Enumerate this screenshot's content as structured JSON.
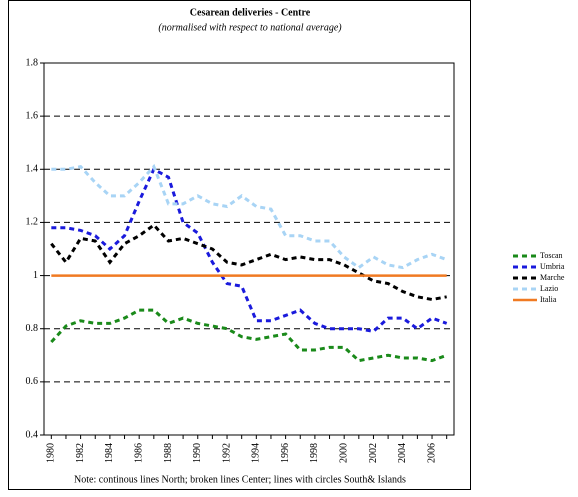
{
  "chart_data": {
    "type": "line",
    "title": "Cesarean deliveries - Centre",
    "subtitle": "(normalised with respect to national average)",
    "note": "Note: continous lines North; broken lines Center; lines with circles South& Islands",
    "categories": [
      "1980",
      null,
      "1982",
      null,
      "1984",
      null,
      "1986",
      null,
      "1988",
      null,
      "1990",
      null,
      "1992",
      null,
      "1994",
      null,
      "1996",
      null,
      "1998",
      null,
      "2000",
      null,
      "2002",
      null,
      "2004",
      null,
      "2006",
      null
    ],
    "ylim": [
      0.4,
      1.8
    ],
    "yticks": [
      0.4,
      0.6,
      0.8,
      1,
      1.2,
      1.4,
      1.6,
      1.8
    ],
    "grid": true,
    "legend": "right",
    "series": [
      {
        "name": "Toscan",
        "color": "#1a8a1a",
        "dashed": true,
        "values": [
          0.75,
          0.81,
          0.83,
          0.82,
          0.82,
          0.84,
          0.87,
          0.87,
          0.82,
          0.84,
          0.82,
          0.81,
          0.8,
          0.77,
          0.76,
          0.77,
          0.78,
          0.72,
          0.72,
          0.73,
          0.73,
          0.68,
          0.69,
          0.7,
          0.69,
          0.69,
          0.68,
          0.7
        ]
      },
      {
        "name": "Umbria",
        "color": "#1a1adc",
        "dashed": true,
        "values": [
          1.18,
          1.18,
          1.17,
          1.15,
          1.1,
          1.15,
          1.28,
          1.4,
          1.37,
          1.2,
          1.16,
          1.05,
          0.97,
          0.96,
          0.83,
          0.83,
          0.85,
          0.87,
          0.82,
          0.8,
          0.8,
          0.8,
          0.79,
          0.84,
          0.84,
          0.8,
          0.84,
          0.82
        ]
      },
      {
        "name": "Marche",
        "color": "#000000",
        "dashed": true,
        "values": [
          1.12,
          1.05,
          1.14,
          1.13,
          1.05,
          1.12,
          1.15,
          1.19,
          1.13,
          1.14,
          1.12,
          1.1,
          1.05,
          1.04,
          1.06,
          1.08,
          1.06,
          1.07,
          1.06,
          1.06,
          1.04,
          1.01,
          0.98,
          0.97,
          0.94,
          0.92,
          0.91,
          0.92
        ]
      },
      {
        "name": "Lazio",
        "color": "#a8d4f5",
        "dashed": true,
        "values": [
          1.4,
          1.4,
          1.41,
          1.35,
          1.3,
          1.3,
          1.35,
          1.41,
          1.27,
          1.27,
          1.3,
          1.27,
          1.26,
          1.3,
          1.26,
          1.25,
          1.15,
          1.15,
          1.13,
          1.13,
          1.07,
          1.03,
          1.07,
          1.04,
          1.03,
          1.06,
          1.08,
          1.06
        ]
      },
      {
        "name": "Italia",
        "color": "#f07a22",
        "dashed": false,
        "values": [
          1,
          1,
          1,
          1,
          1,
          1,
          1,
          1,
          1,
          1,
          1,
          1,
          1,
          1,
          1,
          1,
          1,
          1,
          1,
          1,
          1,
          1,
          1,
          1,
          1,
          1,
          1,
          1
        ]
      }
    ]
  }
}
